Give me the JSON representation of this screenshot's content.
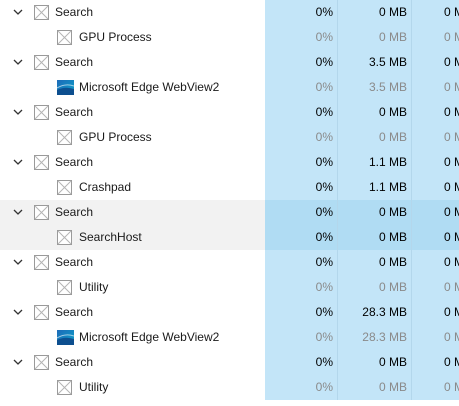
{
  "rows": [
    {
      "level": 0,
      "icon": "blank-app-icon",
      "name": "Search",
      "cpu": "0%",
      "memory": "0 MB",
      "disk": "0 M",
      "dim": false,
      "hover": false
    },
    {
      "level": 1,
      "icon": "blank-app-icon",
      "name": "GPU Process",
      "cpu": "0%",
      "memory": "0 MB",
      "disk": "0 M",
      "dim": true,
      "hover": false
    },
    {
      "level": 0,
      "icon": "blank-app-icon",
      "name": "Search",
      "cpu": "0%",
      "memory": "3.5 MB",
      "disk": "0 M",
      "dim": false,
      "hover": false
    },
    {
      "level": 1,
      "icon": "edge-webview2-icon",
      "name": "Microsoft Edge WebView2",
      "cpu": "0%",
      "memory": "3.5 MB",
      "disk": "0 M",
      "dim": true,
      "hover": false
    },
    {
      "level": 0,
      "icon": "blank-app-icon",
      "name": "Search",
      "cpu": "0%",
      "memory": "0 MB",
      "disk": "0 M",
      "dim": false,
      "hover": false
    },
    {
      "level": 1,
      "icon": "blank-app-icon",
      "name": "GPU Process",
      "cpu": "0%",
      "memory": "0 MB",
      "disk": "0 M",
      "dim": true,
      "hover": false
    },
    {
      "level": 0,
      "icon": "blank-app-icon",
      "name": "Search",
      "cpu": "0%",
      "memory": "1.1 MB",
      "disk": "0 M",
      "dim": false,
      "hover": false
    },
    {
      "level": 1,
      "icon": "blank-app-icon",
      "name": "Crashpad",
      "cpu": "0%",
      "memory": "1.1 MB",
      "disk": "0 M",
      "dim": false,
      "hover": false
    },
    {
      "level": 0,
      "icon": "blank-app-icon",
      "name": "Search",
      "cpu": "0%",
      "memory": "0 MB",
      "disk": "0 M",
      "dim": false,
      "hover": true
    },
    {
      "level": 1,
      "icon": "blank-app-icon",
      "name": "SearchHost",
      "cpu": "0%",
      "memory": "0 MB",
      "disk": "0 M",
      "dim": false,
      "hover": true
    },
    {
      "level": 0,
      "icon": "blank-app-icon",
      "name": "Search",
      "cpu": "0%",
      "memory": "0 MB",
      "disk": "0 M",
      "dim": false,
      "hover": false
    },
    {
      "level": 1,
      "icon": "blank-app-icon",
      "name": "Utility",
      "cpu": "0%",
      "memory": "0 MB",
      "disk": "0 M",
      "dim": true,
      "hover": false
    },
    {
      "level": 0,
      "icon": "blank-app-icon",
      "name": "Search",
      "cpu": "0%",
      "memory": "28.3 MB",
      "disk": "0 M",
      "dim": false,
      "hover": false
    },
    {
      "level": 1,
      "icon": "edge-webview2-icon",
      "name": "Microsoft Edge WebView2",
      "cpu": "0%",
      "memory": "28.3 MB",
      "disk": "0 M",
      "dim": true,
      "hover": false
    },
    {
      "level": 0,
      "icon": "blank-app-icon",
      "name": "Search",
      "cpu": "0%",
      "memory": "0 MB",
      "disk": "0 M",
      "dim": false,
      "hover": false
    },
    {
      "level": 1,
      "icon": "blank-app-icon",
      "name": "Utility",
      "cpu": "0%",
      "memory": "0 MB",
      "disk": "0 M",
      "dim": true,
      "hover": false
    }
  ],
  "colors": {
    "heat_cell": "#c3e5f8",
    "heat_cell_hover": "#b0dcf3",
    "row_hover": "#f2f2f2",
    "dim_text": "#8a8a8a",
    "edge_icon_top": "#1e6bb8",
    "edge_icon_bottom": "#0aa0c8"
  }
}
